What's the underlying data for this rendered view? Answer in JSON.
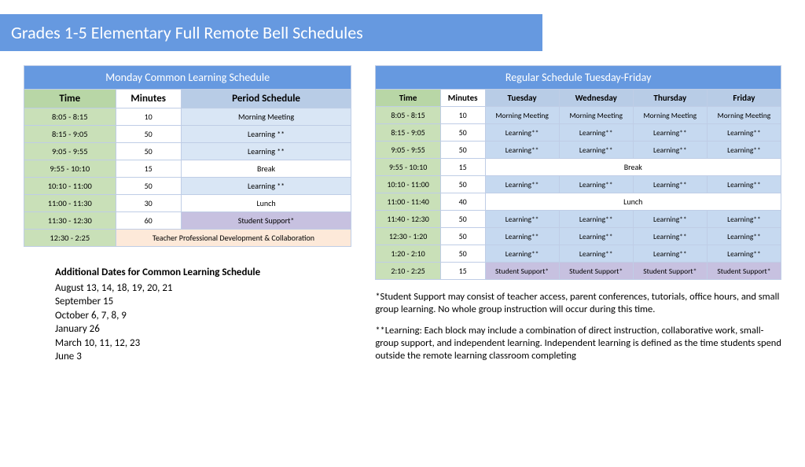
{
  "title": "Grades 1-5 Elementary Full Remote Bell Schedules",
  "monday": {
    "header": "Monday Common Learning Schedule",
    "cols": {
      "time": "Time",
      "minutes": "Minutes",
      "period": "Period Schedule"
    },
    "rows": [
      {
        "time": "8:05 - 8:15",
        "min": "10",
        "per": "Morning Meeting",
        "cls": "cell-per"
      },
      {
        "time": "8:15 - 9:05",
        "min": "50",
        "per": "Learning **",
        "cls": "cell-per"
      },
      {
        "time": "9:05 - 9:55",
        "min": "50",
        "per": "Learning **",
        "cls": "cell-per"
      },
      {
        "time": "9:55 - 10:10",
        "min": "15",
        "per": "Break",
        "cls": "cell-break"
      },
      {
        "time": "10:10 - 11:00",
        "min": "50",
        "per": "Learning **",
        "cls": "cell-per"
      },
      {
        "time": "11:00 - 11:30",
        "min": "30",
        "per": "Lunch",
        "cls": "cell-break"
      },
      {
        "time": "11:30 - 12:30",
        "min": "60",
        "per": "Student Support*",
        "cls": "cell-support"
      }
    ],
    "pd_time": "12:30 - 2:25",
    "pd_text": "Teacher Professional Development & Collaboration"
  },
  "regular": {
    "header": "Regular Schedule Tuesday-Friday",
    "cols": {
      "time": "Time",
      "minutes": "Minutes",
      "tue": "Tuesday",
      "wed": "Wednesday",
      "thu": "Thursday",
      "fri": "Friday"
    },
    "rows": [
      {
        "time": "8:05 - 8:15",
        "min": "10",
        "v": [
          "Morning Meeting",
          "Morning Meeting",
          "Morning Meeting",
          "Morning Meeting"
        ],
        "cls": "cell-day"
      },
      {
        "time": "8:15 - 9:05",
        "min": "50",
        "v": [
          "Learning**",
          "Learning**",
          "Learning**",
          "Learning**"
        ],
        "cls": "cell-day"
      },
      {
        "time": "9:05 - 9:55",
        "min": "50",
        "v": [
          "Learning**",
          "Learning**",
          "Learning**",
          "Learning**"
        ],
        "cls": "cell-day"
      },
      {
        "time": "9:55 - 10:10",
        "min": "15",
        "span": "Break",
        "cls": "cell-break"
      },
      {
        "time": "10:10 - 11:00",
        "min": "50",
        "v": [
          "Learning**",
          "Learning**",
          "Learning**",
          "Learning**"
        ],
        "cls": "cell-day"
      },
      {
        "time": "11:00 - 11:40",
        "min": "40",
        "span": "Lunch",
        "cls": "cell-break"
      },
      {
        "time": "11:40 - 12:30",
        "min": "50",
        "v": [
          "Learning**",
          "Learning**",
          "Learning**",
          "Learning**"
        ],
        "cls": "cell-day"
      },
      {
        "time": "12:30 - 1:20",
        "min": "50",
        "v": [
          "Learning**",
          "Learning**",
          "Learning**",
          "Learning**"
        ],
        "cls": "cell-day"
      },
      {
        "time": "1:20 - 2:10",
        "min": "50",
        "v": [
          "Learning**",
          "Learning**",
          "Learning**",
          "Learning**"
        ],
        "cls": "cell-day"
      },
      {
        "time": "2:10 - 2:25",
        "min": "15",
        "v": [
          "Student Support*",
          "Student Support*",
          "Student Support*",
          "Student Support*"
        ],
        "cls": "cell-supportL"
      }
    ]
  },
  "additional": {
    "title": "Additional Dates for Common Learning Schedule",
    "lines": [
      "August 13, 14, 18, 19, 20, 21",
      "September 15",
      "October 6, 7, 8, 9",
      "January 26",
      "March 10, 11, 12, 23",
      "June 3"
    ]
  },
  "footnotes": {
    "p1": "*Student Support may consist of teacher access, parent conferences, tutorials, office hours, and small group learning. No whole group instruction will occur during this time.",
    "p2": "**Learning:  Each block may include a combination of direct instruction, collaborative work, small-group support, and independent learning. Independent learning is defined as the time students spend outside the remote learning classroom completing"
  }
}
